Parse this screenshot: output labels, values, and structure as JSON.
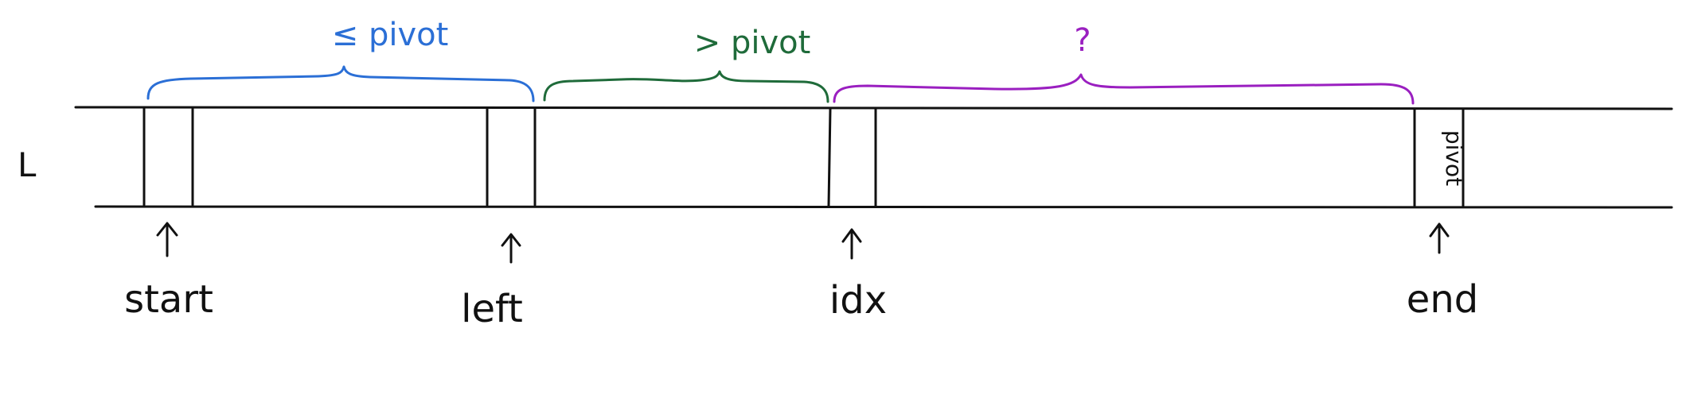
{
  "list_label": "L",
  "regions": {
    "le_pivot": {
      "label": "≤ pivot",
      "color": "#2b6fd6"
    },
    "gt_pivot": {
      "label": "> pivot",
      "color": "#1f6b3a"
    },
    "unknown": {
      "label": "?",
      "color": "#9a1fc0"
    }
  },
  "pivot_cell_label": "pivot",
  "pointers": {
    "start": "start",
    "left": "left",
    "idx": "idx",
    "end": "end"
  },
  "colors": {
    "ink": "#111111",
    "blue": "#2b6fd6",
    "green": "#1f6b3a",
    "purple": "#9a1fc0"
  }
}
